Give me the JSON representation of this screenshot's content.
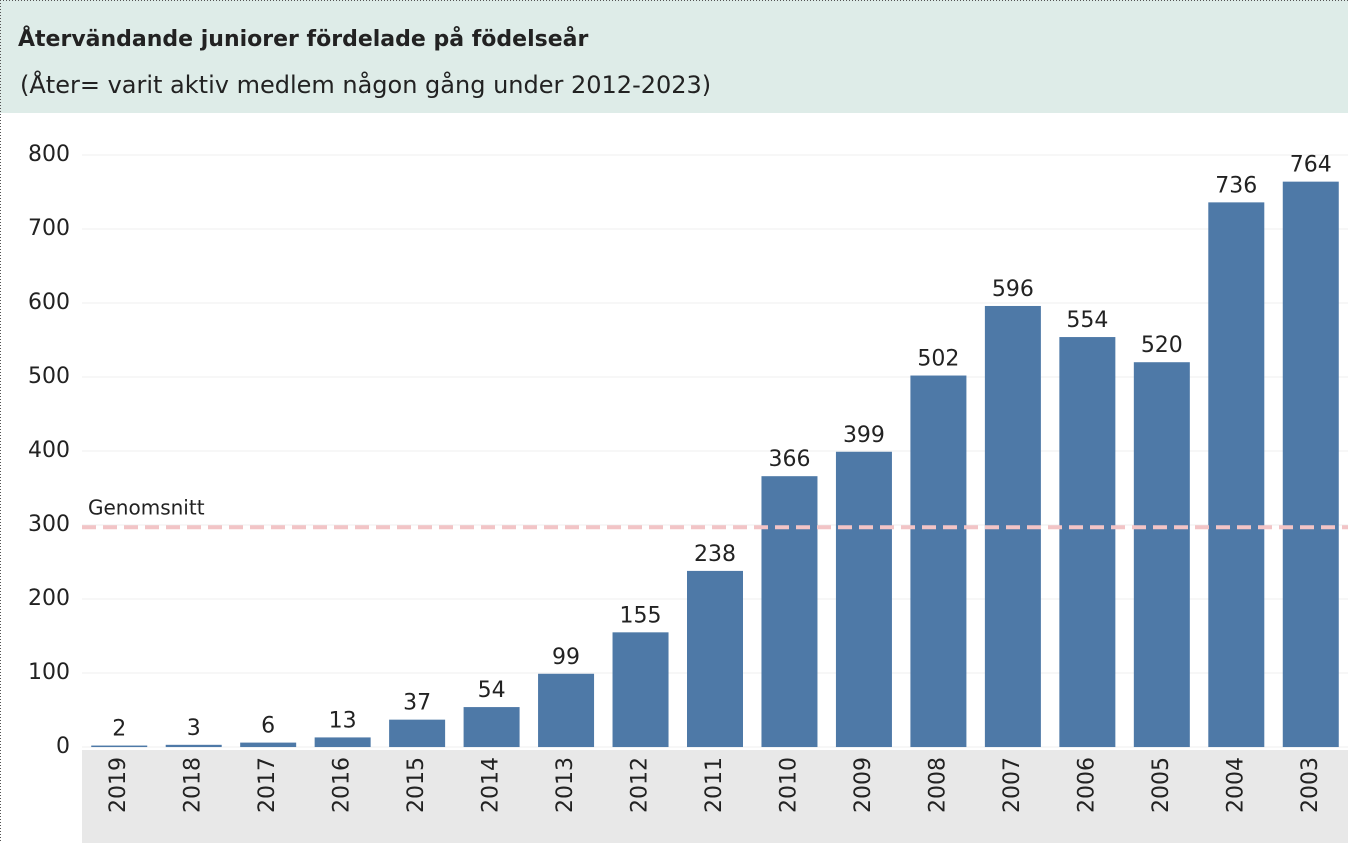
{
  "chart_data": {
    "type": "bar",
    "title": "Återvändande juniorer fördelade på födelseår",
    "subtitle": "(Åter= varit aktiv medlem någon gång under 2012-2023)",
    "categories": [
      "2019",
      "2018",
      "2017",
      "2016",
      "2015",
      "2014",
      "2013",
      "2012",
      "2011",
      "2010",
      "2009",
      "2008",
      "2007",
      "2006",
      "2005",
      "2004",
      "2003"
    ],
    "values": [
      2,
      3,
      6,
      13,
      37,
      54,
      99,
      155,
      238,
      366,
      399,
      502,
      596,
      554,
      520,
      736,
      764
    ],
    "color": "#4e79a7",
    "ylim": [
      -4,
      850
    ],
    "yticks": [
      0,
      100,
      200,
      300,
      400,
      500,
      600,
      700,
      800
    ],
    "grid": true,
    "reference_line": {
      "label": "Genomsnitt",
      "value": 297,
      "color": "#f2c4c6"
    }
  }
}
